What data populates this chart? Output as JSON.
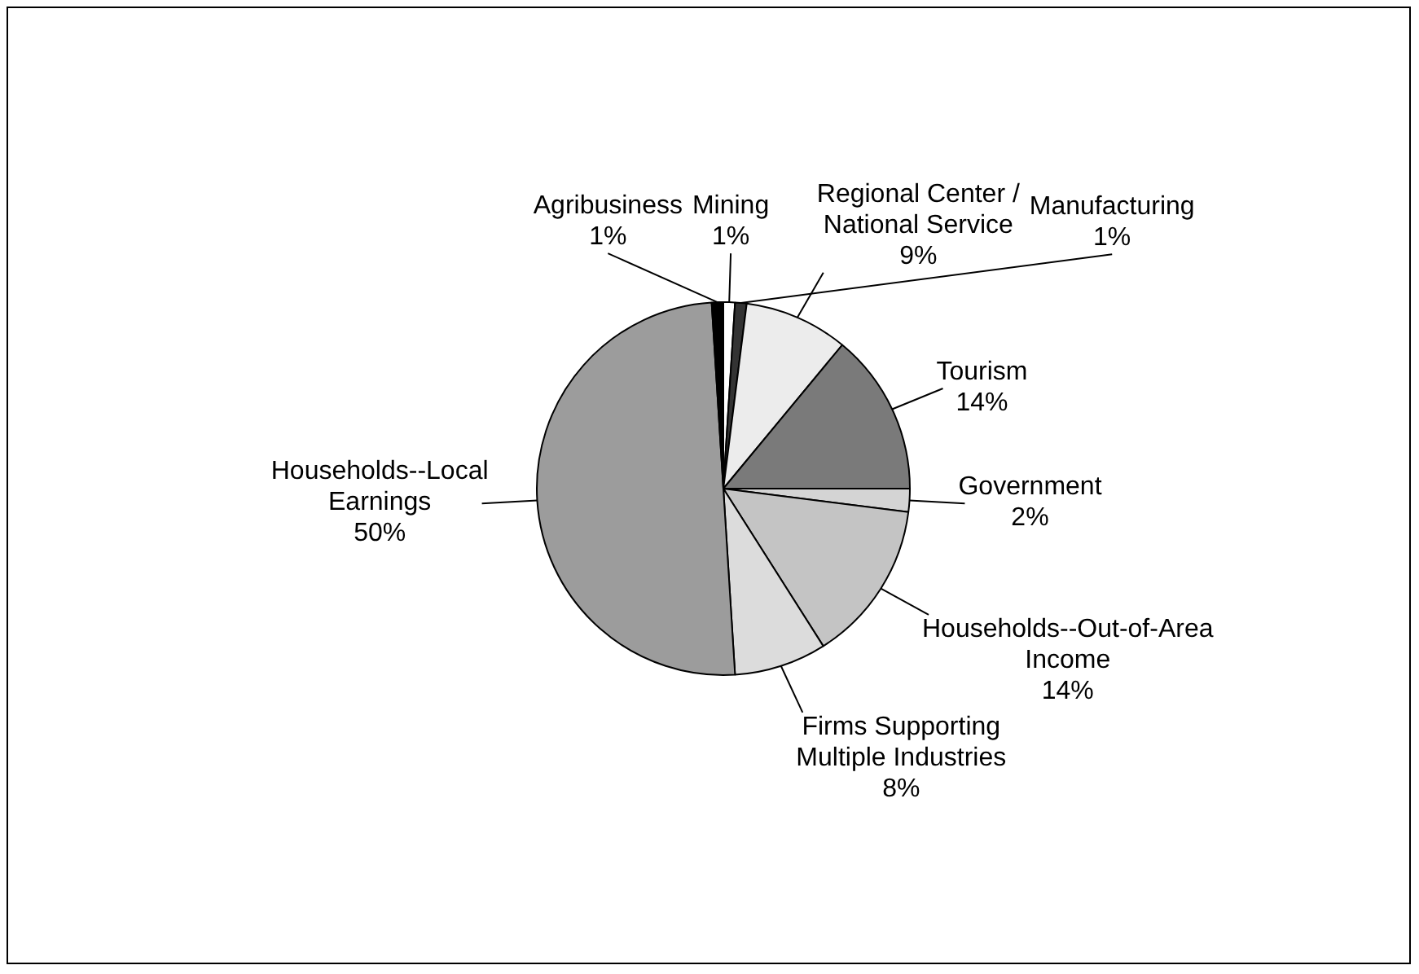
{
  "chart_data": {
    "type": "pie",
    "categories": [
      "Mining",
      "Manufacturing",
      "Regional Center / National Service",
      "Tourism",
      "Government",
      "Households--Out-of-Area Income",
      "Firms Supporting Multiple Industries",
      "Households--Local Earnings",
      "Agribusiness"
    ],
    "values": [
      1,
      1,
      9,
      14,
      2,
      14,
      8,
      50,
      1
    ],
    "value_labels": [
      "1%",
      "1%",
      "9%",
      "14%",
      "2%",
      "14%",
      "8%",
      "50%",
      "1%"
    ],
    "colors": [
      "#ffffff",
      "#333333",
      "#ececec",
      "#7a7a7a",
      "#d4d4d4",
      "#c4c4c4",
      "#dcdcdc",
      "#9c9c9c",
      "#000000"
    ],
    "legend": false
  }
}
